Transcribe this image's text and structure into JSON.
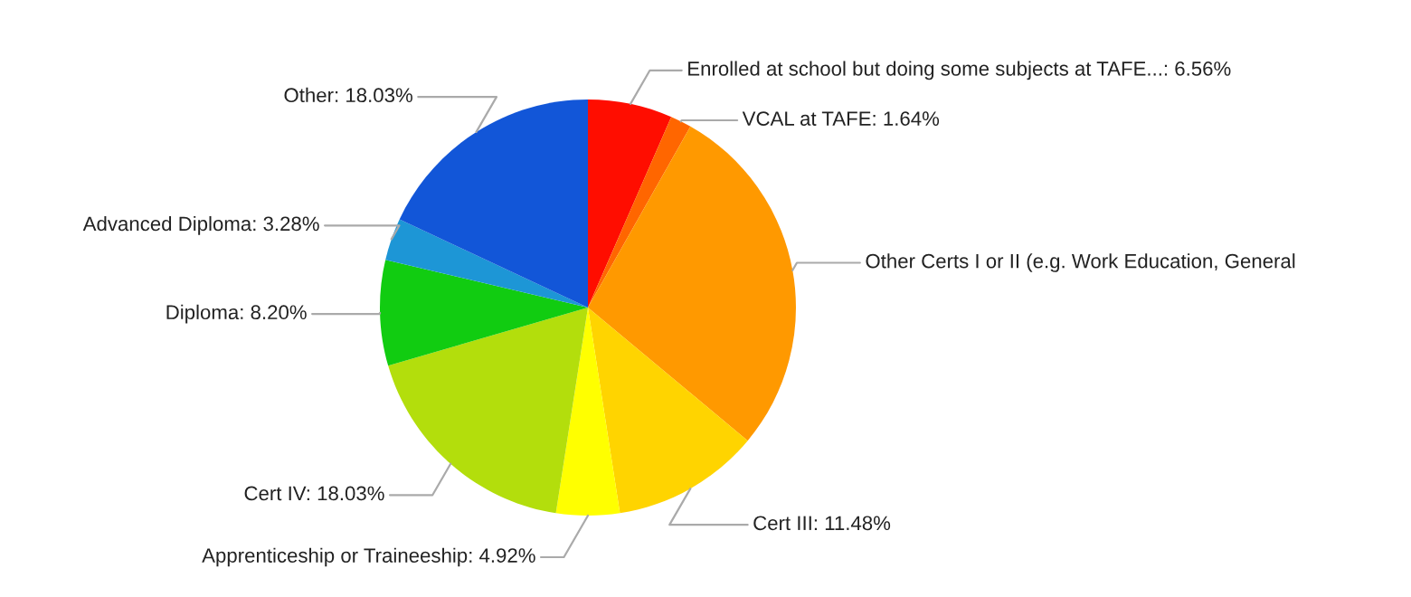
{
  "chart_data": {
    "type": "pie",
    "categories": [
      "Enrolled at school but doing some subjects at TAFE...",
      "VCAL at TAFE",
      "Other Certs I or II (e.g. Work Education, General",
      "Cert III",
      "Apprenticeship or Traineeship",
      "Cert IV",
      "Diploma",
      "Advanced Diploma",
      "Other"
    ],
    "values": [
      6.56,
      1.64,
      27.86,
      11.48,
      4.92,
      18.03,
      8.2,
      3.28,
      18.03
    ],
    "value_labels": [
      "6.56%",
      "1.64%",
      null,
      "11.48%",
      "4.92%",
      "18.03%",
      "8.20%",
      "3.28%",
      "18.03%"
    ],
    "colors": [
      "#ff0d00",
      "#ff6600",
      "#ff9900",
      "#ffd400",
      "#ffff00",
      "#b3de0c",
      "#11cc11",
      "#1d96d6",
      "#1256d8"
    ]
  }
}
